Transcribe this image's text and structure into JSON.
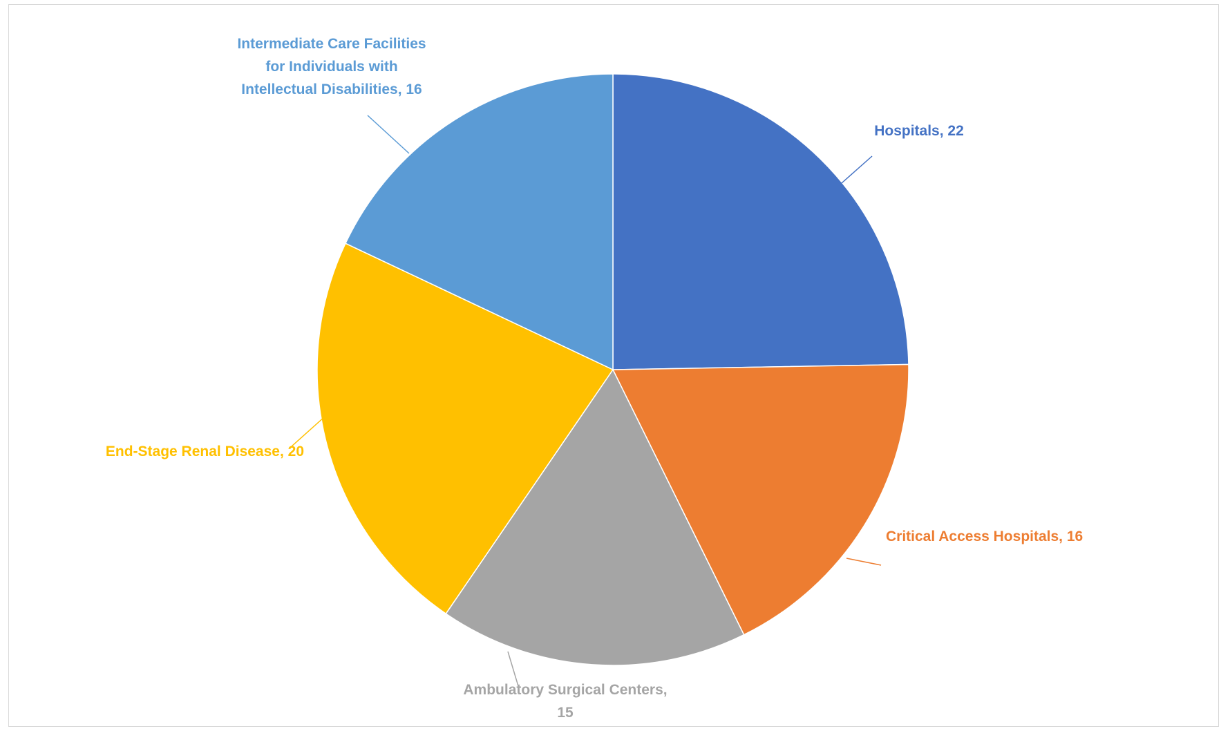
{
  "chart_data": {
    "type": "pie",
    "title": "",
    "start_angle_deg": 0,
    "direction": "clockwise",
    "legend": "none",
    "slices": [
      {
        "name": "Hospitals",
        "value": 22,
        "color": "#4472C4",
        "label_lines": [
          "Hospitals, 22"
        ]
      },
      {
        "name": "Critical Access Hospitals",
        "value": 16,
        "color": "#ED7D31",
        "label_lines": [
          "Critical Access Hospitals, 16"
        ]
      },
      {
        "name": "Ambulatory Surgical Centers",
        "value": 15,
        "color": "#A5A5A5",
        "label_lines": [
          "Ambulatory Surgical Centers,",
          "15"
        ]
      },
      {
        "name": "End-Stage Renal Disease",
        "value": 20,
        "color": "#FFC000",
        "label_lines": [
          "End-Stage Renal Disease, 20"
        ]
      },
      {
        "name": "Intermediate Care Facilities for Individuals with Intellectual Disabilities",
        "value": 16,
        "color": "#5B9BD5",
        "label_lines": [
          "Intermediate Care Facilities",
          "for Individuals with",
          "Intellectual Disabilities, 16"
        ]
      }
    ]
  }
}
